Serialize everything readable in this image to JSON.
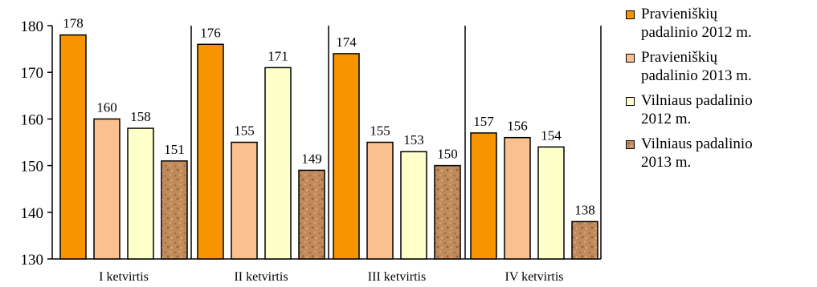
{
  "chart_data": {
    "type": "bar",
    "categories": [
      "I ketvirtis",
      "II ketvirtis",
      "III ketvirtis",
      "IV ketvirtis"
    ],
    "series": [
      {
        "name": "Pravieniškių\npadalinio 2012 m.",
        "values": [
          178,
          176,
          174,
          157
        ],
        "color": "#f79400",
        "pattern": "solid"
      },
      {
        "name": "Pravieniškių\npadalinio 2013 m.",
        "values": [
          160,
          155,
          155,
          156
        ],
        "color": "#fac090",
        "pattern": "solid"
      },
      {
        "name": "Vilniaus padalinio\n2012 m.",
        "values": [
          158,
          171,
          153,
          154
        ],
        "color": "#ffffc9",
        "pattern": "solid"
      },
      {
        "name": "Vilniaus padalinio\n2013 m.",
        "values": [
          151,
          149,
          150,
          138
        ],
        "color": "#c18b5e",
        "pattern": "sand-texture"
      }
    ],
    "ylim": [
      130,
      180
    ],
    "yticks": [
      130,
      140,
      150,
      160,
      170,
      180
    ],
    "title": "",
    "xlabel": "",
    "ylabel": "",
    "data_labels": true,
    "legend_position": "right",
    "grid": false
  }
}
